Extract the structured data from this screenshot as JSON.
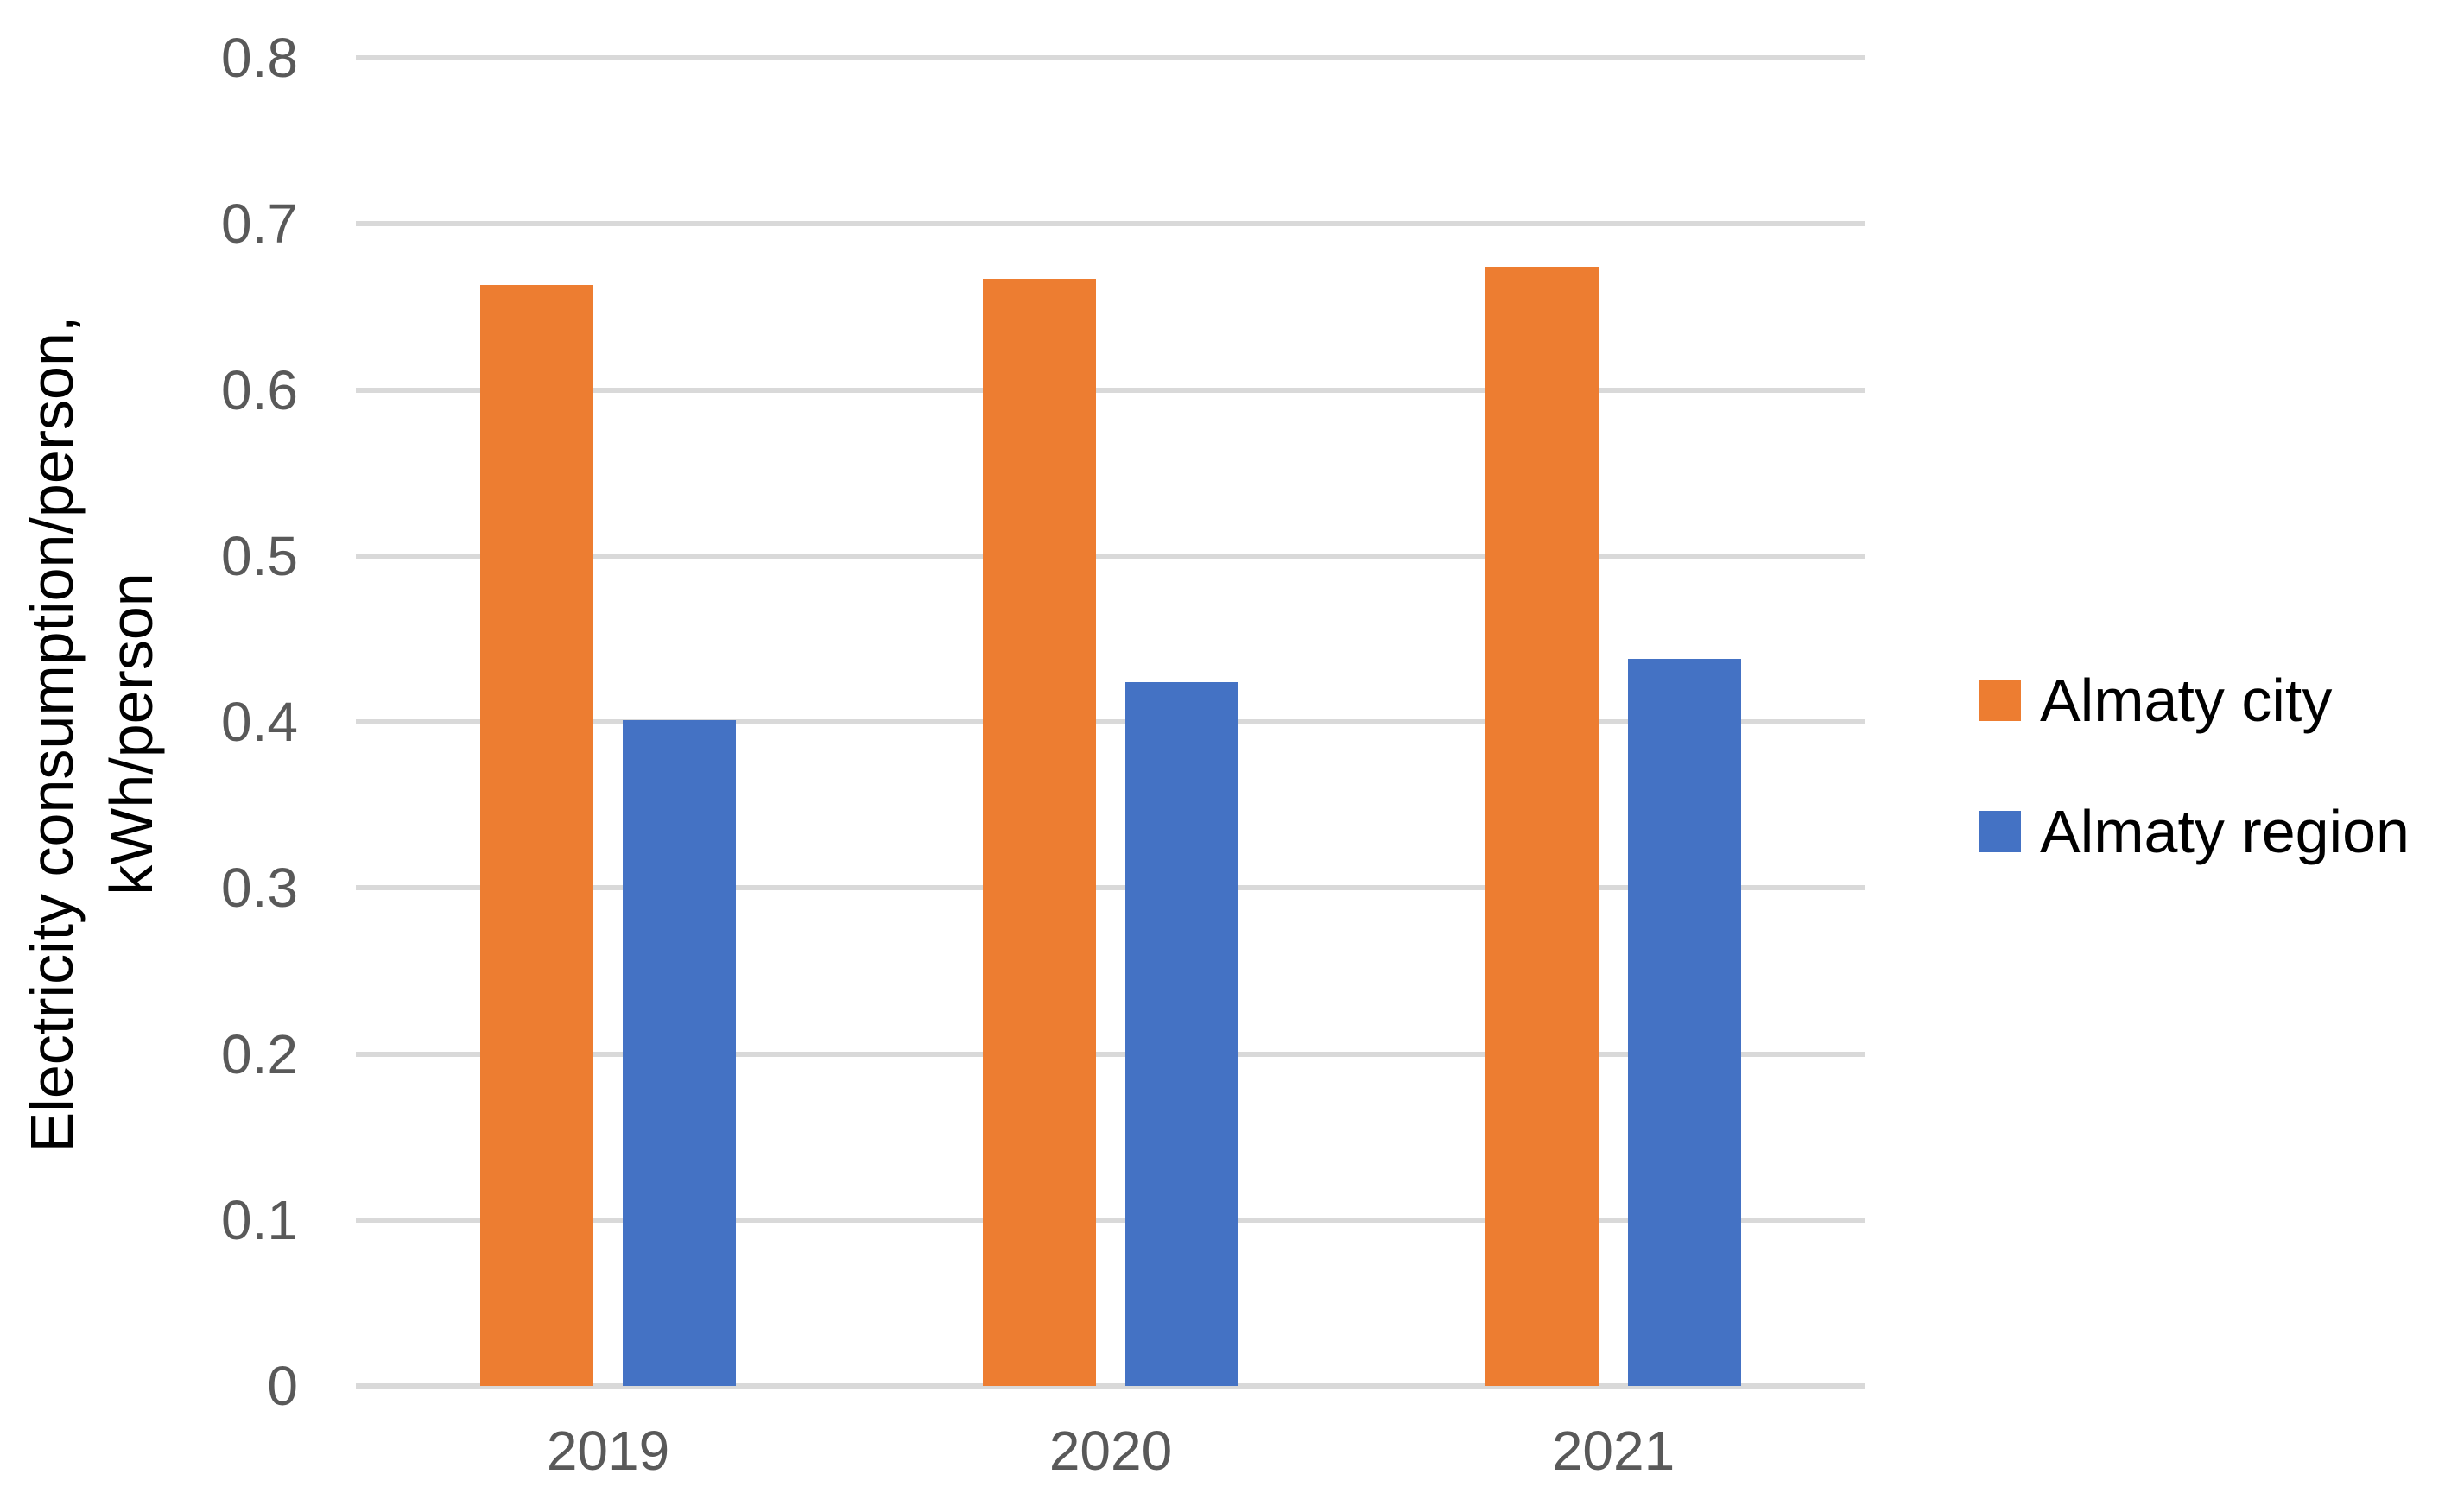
{
  "chart_data": {
    "type": "bar",
    "title": "",
    "categories": [
      "2019",
      "2020",
      "2021"
    ],
    "series": [
      {
        "name": "Almaty city",
        "color": "#ED7D31",
        "values": [
          0.663,
          0.667,
          0.674
        ]
      },
      {
        "name": "Almaty region",
        "color": "#4472C4",
        "values": [
          0.401,
          0.424,
          0.438
        ]
      }
    ],
    "ylabel_line1": "Electricity consumption/person,",
    "ylabel_line2": "kWh/person",
    "xlabel": "",
    "ylim": [
      0,
      0.8
    ],
    "ytick_step": 0.1,
    "yticks": [
      "0.8",
      "0.7",
      "0.6",
      "0.5",
      "0.4",
      "0.3",
      "0.2",
      "0.1",
      "0"
    ],
    "grid": true,
    "legend_position": "right",
    "colors": {
      "gridline": "#D9D9D9",
      "tick_label": "#595959",
      "axis_title": "#000000",
      "legend_text": "#000000",
      "background": "#FFFFFF"
    }
  }
}
